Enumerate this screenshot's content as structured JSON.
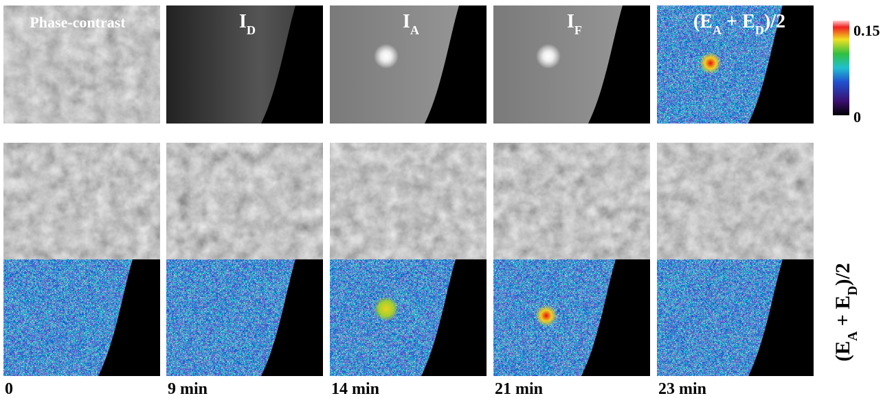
{
  "header_labels": [
    [
      "Phase-contrast"
    ],
    [
      "I",
      "D"
    ],
    [
      "I",
      "A"
    ],
    [
      "I",
      "F"
    ],
    [
      "(E",
      "A",
      " + E",
      "D",
      ")/2"
    ]
  ],
  "colorbar": {
    "range": [
      0,
      0.15
    ],
    "ticks": [
      0.15,
      0
    ]
  },
  "row_label": [
    "(E",
    "A",
    " + E",
    "D",
    ")/2"
  ],
  "time_labels": [
    "0",
    "9 min",
    "14 min",
    "21 min",
    "23 min"
  ]
}
